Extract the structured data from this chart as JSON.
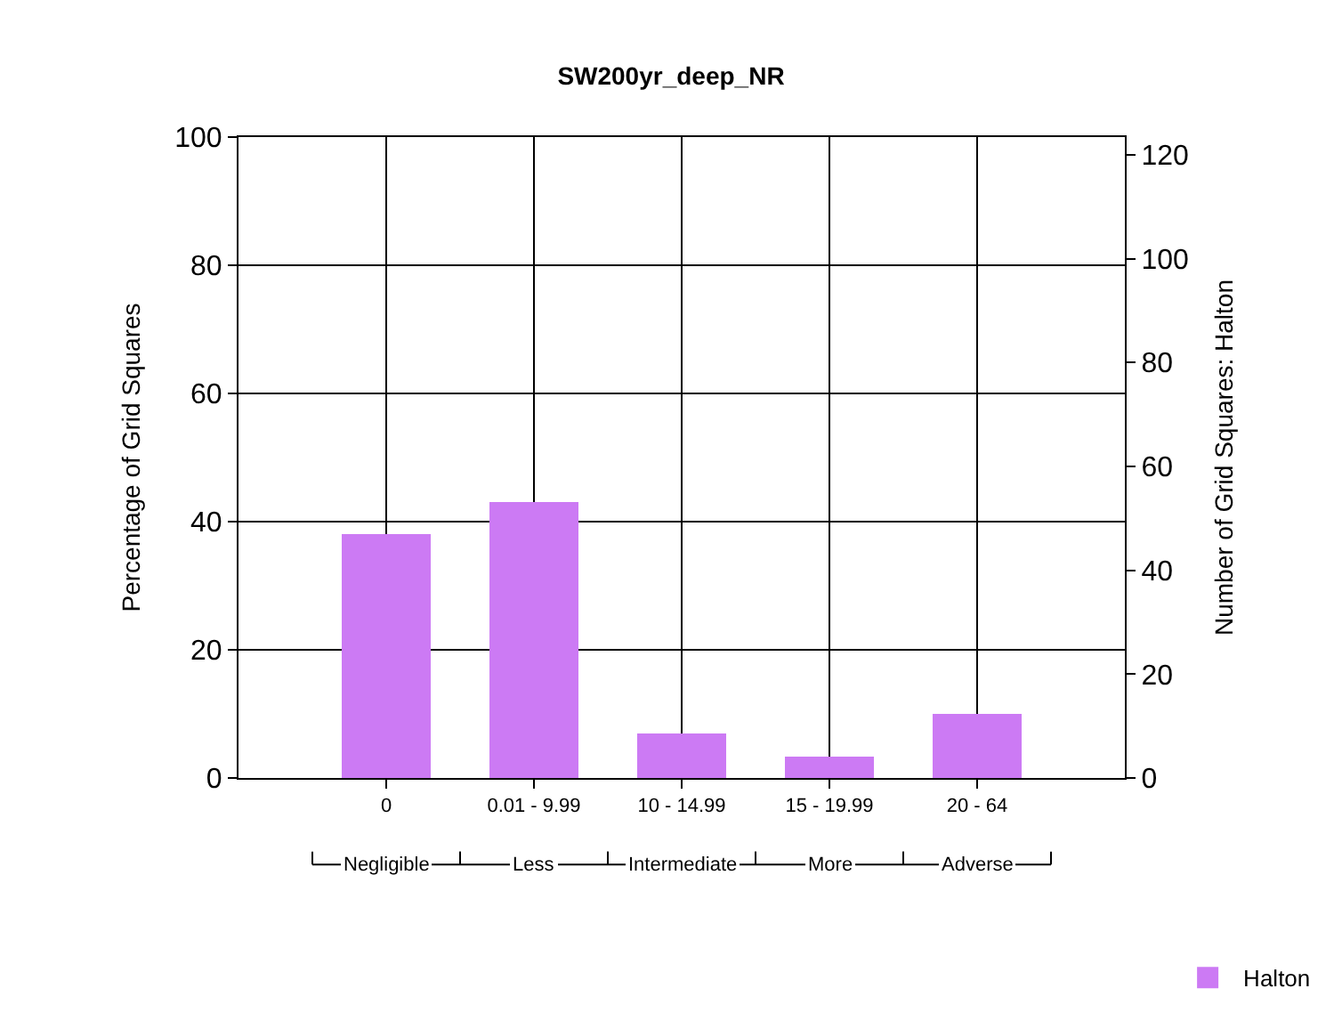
{
  "chart_data": {
    "type": "bar",
    "title": "SW200yr_deep_NR",
    "categories": [
      "0",
      "0.01 - 9.99",
      "10 - 14.99",
      "15 - 19.99",
      "20 - 64"
    ],
    "series": [
      {
        "name": "Halton",
        "color": "#cc7af4",
        "values": [
          38,
          43,
          6.9,
          3.3,
          10
        ]
      }
    ],
    "ylabel": "Percentage of Grid Squares",
    "y2label": "Number of Grid Squares: Halton",
    "ylim": [
      0,
      100
    ],
    "yticks": [
      0,
      20,
      40,
      60,
      80,
      100
    ],
    "y2lim": [
      0,
      123.4
    ],
    "y2ticks": [
      0,
      20,
      40,
      60,
      80,
      100,
      120
    ],
    "annotations": [
      "Negligible",
      "Less",
      "Intermediate",
      "More",
      "Adverse"
    ],
    "grid": true,
    "legend": "bottom right"
  }
}
